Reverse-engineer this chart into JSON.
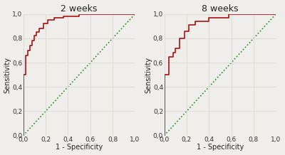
{
  "title1": "2 weeks",
  "title2": "8 weeks",
  "xlabel": "1 - Specificity",
  "ylabel": "Sensitivity",
  "roc1_fpr": [
    0.0,
    0.0,
    0.02,
    0.02,
    0.04,
    0.06,
    0.08,
    0.1,
    0.12,
    0.14,
    0.18,
    0.22,
    0.28,
    0.36,
    0.5,
    1.0
  ],
  "roc1_tpr": [
    0.0,
    0.5,
    0.5,
    0.66,
    0.7,
    0.74,
    0.78,
    0.82,
    0.85,
    0.88,
    0.92,
    0.95,
    0.97,
    0.98,
    1.0,
    1.0
  ],
  "roc2_fpr": [
    0.0,
    0.0,
    0.04,
    0.04,
    0.08,
    0.1,
    0.14,
    0.18,
    0.22,
    0.28,
    0.4,
    0.58,
    1.0
  ],
  "roc2_tpr": [
    0.0,
    0.5,
    0.5,
    0.65,
    0.68,
    0.72,
    0.8,
    0.86,
    0.91,
    0.94,
    0.97,
    1.0,
    1.0
  ],
  "roc_color": "#aa1111",
  "diag_color": "#2a8a2a",
  "bg_color": "#f0eeea",
  "grid_color": "#e0ddd8",
  "tick_labels": [
    "0,0",
    "0,2",
    "0,4",
    "0,6",
    "0,8",
    "1,0"
  ],
  "tick_values": [
    0.0,
    0.2,
    0.4,
    0.6,
    0.8,
    1.0
  ],
  "title_fontsize": 9,
  "label_fontsize": 7,
  "tick_fontsize": 6.5
}
